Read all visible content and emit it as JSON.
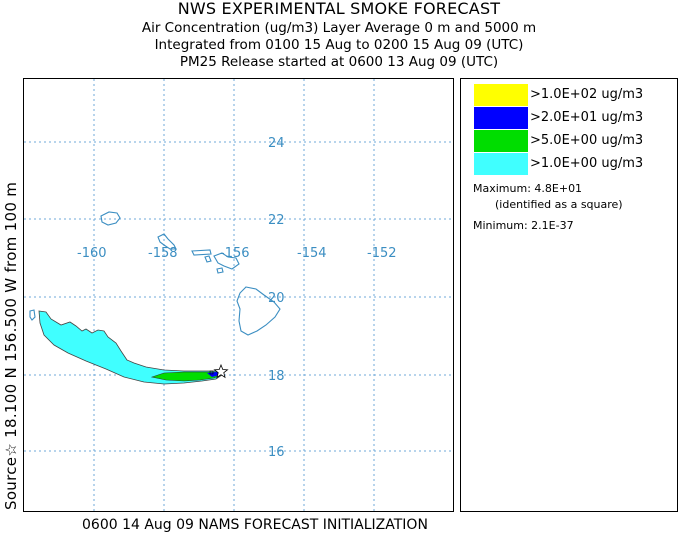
{
  "header": {
    "title": "NWS EXPERIMENTAL SMOKE FORECAST",
    "line1": "Air Concentration (ug/m3) Layer Average    0 m and  5000 m",
    "line2": "Integrated from 0100 15 Aug to 0200 15 Aug 09 (UTC)",
    "line3": "PM25 Release started at 0600 13 Aug 09 (UTC)"
  },
  "side_label": "Source☆ 18.100  N 156.500  W    from  100 m",
  "footer": "0600 14 Aug 09 NAMS FORECAST INITIALIZATION",
  "map": {
    "lon_labels": [
      "-160",
      "-158",
      "-156",
      "-154",
      "-152"
    ],
    "lat_labels": [
      "24",
      "22",
      "20",
      "18",
      "16"
    ],
    "grid_color": "#6fa8d8",
    "land_color": "#3b8ec2",
    "plume_colors": {
      "low": "#40ffff",
      "mid": "#00dd00",
      "high": "#0000ff"
    },
    "source_marker": "star-icon"
  },
  "legend": {
    "items": [
      {
        "label": ">1.0E+02 ug/m3",
        "color": "#ffff00"
      },
      {
        "label": ">2.0E+01 ug/m3",
        "color": "#0000ff"
      },
      {
        "label": ">5.0E+00 ug/m3",
        "color": "#00dd00"
      },
      {
        "label": ">1.0E+00 ug/m3",
        "color": "#40ffff"
      }
    ],
    "maximum": "Maximum: 4.8E+01",
    "maximum_note": "(identified as a square)",
    "minimum": "Minimum: 2.1E-37"
  }
}
